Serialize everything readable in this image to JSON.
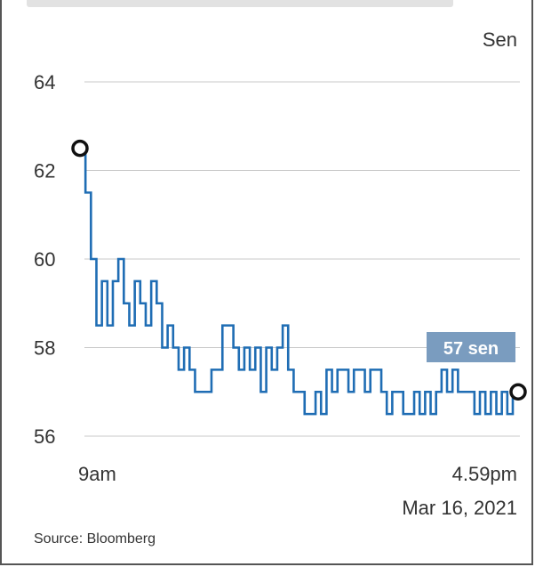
{
  "chart_data": {
    "type": "line",
    "unit_label": "Sen",
    "ylim": [
      56,
      64
    ],
    "yticks": [
      64,
      62,
      60,
      58,
      56
    ],
    "x_start_label": "9am",
    "x_end_label": "4.59pm",
    "date_label": "Mar 16, 2021",
    "last_value_label": "57 sen",
    "start_value": 62.5,
    "end_value": 57,
    "grid": true,
    "series": [
      {
        "values": [
          62.5,
          61.5,
          60.0,
          58.5,
          59.5,
          58.5,
          59.5,
          60.0,
          59.0,
          58.5,
          59.5,
          59.0,
          58.5,
          59.5,
          59.0,
          58.0,
          58.5,
          58.0,
          57.5,
          58.0,
          57.5,
          57.0,
          57.0,
          57.0,
          57.5,
          57.5,
          58.5,
          58.5,
          58.0,
          57.5,
          58.0,
          57.5,
          58.0,
          57.0,
          58.0,
          57.5,
          58.0,
          58.5,
          57.5,
          57.0,
          57.0,
          56.5,
          56.5,
          57.0,
          56.5,
          57.5,
          57.0,
          57.5,
          57.5,
          57.0,
          57.5,
          57.5,
          57.0,
          57.5,
          57.5,
          57.0,
          56.5,
          57.0,
          57.0,
          56.5,
          56.5,
          57.0,
          56.5,
          57.0,
          56.5,
          57.0,
          57.5,
          57.0,
          57.5,
          57.0,
          57.0,
          57.0,
          56.5,
          57.0,
          56.5,
          57.0,
          56.5,
          57.0,
          56.5,
          57.0
        ]
      }
    ],
    "accent_color": "#1f6db4",
    "badge_color": "#7a9cbf"
  },
  "source_text": "Source: Bloomberg"
}
